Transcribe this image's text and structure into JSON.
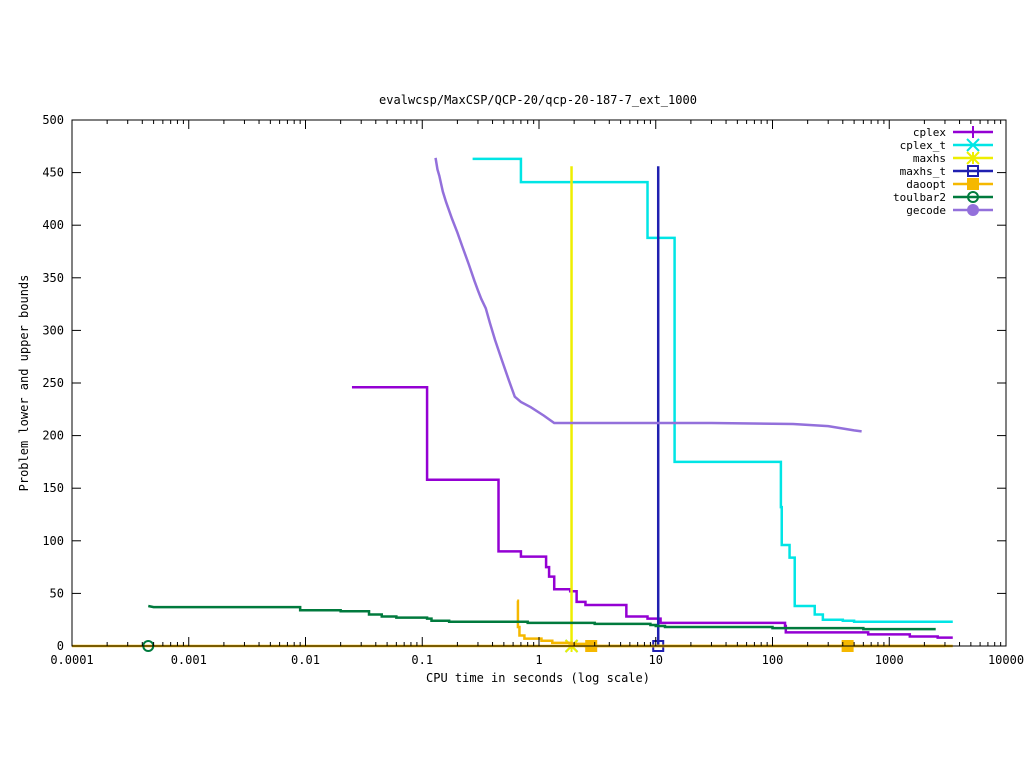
{
  "chart_data": {
    "type": "line",
    "title": "evalwcsp/MaxCSP/QCP-20/qcp-20-187-7_ext_1000",
    "xlabel": "CPU time in seconds (log scale)",
    "ylabel": "Problem lower and upper bounds",
    "x_scale": "log",
    "xlim": [
      0.0001,
      10000
    ],
    "ylim": [
      0,
      500
    ],
    "x_ticks": [
      {
        "value": 0.0001,
        "label": "0.0001"
      },
      {
        "value": 0.001,
        "label": "0.001"
      },
      {
        "value": 0.01,
        "label": "0.01"
      },
      {
        "value": 0.1,
        "label": "0.1"
      },
      {
        "value": 1,
        "label": "1"
      },
      {
        "value": 10,
        "label": "10"
      },
      {
        "value": 100,
        "label": "100"
      },
      {
        "value": 1000,
        "label": "1000"
      },
      {
        "value": 10000,
        "label": "10000"
      }
    ],
    "y_ticks": [
      {
        "value": 0,
        "label": "0"
      },
      {
        "value": 50,
        "label": "50"
      },
      {
        "value": 100,
        "label": "100"
      },
      {
        "value": 150,
        "label": "150"
      },
      {
        "value": 200,
        "label": "200"
      },
      {
        "value": 250,
        "label": "250"
      },
      {
        "value": 300,
        "label": "300"
      },
      {
        "value": 350,
        "label": "350"
      },
      {
        "value": 400,
        "label": "400"
      },
      {
        "value": 450,
        "label": "450"
      },
      {
        "value": 500,
        "label": "500"
      }
    ],
    "grid": false,
    "legend_position": "top-right",
    "series": [
      {
        "name": "cplex",
        "color": "#9400d3",
        "marker": "plus",
        "points": [
          [
            0.025,
            246
          ],
          [
            0.11,
            246
          ],
          [
            0.11,
            158
          ],
          [
            0.45,
            158
          ],
          [
            0.45,
            90
          ],
          [
            0.7,
            90
          ],
          [
            0.7,
            85
          ],
          [
            1.15,
            85
          ],
          [
            1.15,
            75
          ],
          [
            1.22,
            75
          ],
          [
            1.22,
            66
          ],
          [
            1.35,
            66
          ],
          [
            1.35,
            54
          ],
          [
            1.85,
            54
          ],
          [
            1.85,
            52
          ],
          [
            2.1,
            52
          ],
          [
            2.1,
            42
          ],
          [
            2.5,
            42
          ],
          [
            2.5,
            39
          ],
          [
            5.6,
            39
          ],
          [
            5.6,
            28
          ],
          [
            8.5,
            28
          ],
          [
            8.5,
            26
          ],
          [
            11,
            26
          ],
          [
            11,
            22
          ],
          [
            128,
            22
          ],
          [
            128,
            19
          ],
          [
            130,
            19
          ],
          [
            130,
            13
          ],
          [
            660,
            13
          ],
          [
            660,
            11
          ],
          [
            1500,
            11
          ],
          [
            1500,
            9
          ],
          [
            2600,
            9
          ],
          [
            2600,
            8
          ],
          [
            3500,
            8
          ]
        ],
        "marker_points": []
      },
      {
        "name": "cplex_t",
        "color": "#00e5e5",
        "marker": "x",
        "points": [
          [
            0.27,
            463
          ],
          [
            0.7,
            463
          ],
          [
            0.7,
            441
          ],
          [
            8.5,
            441
          ],
          [
            8.5,
            388
          ],
          [
            14.5,
            388
          ],
          [
            14.5,
            175
          ],
          [
            118,
            175
          ],
          [
            118,
            132
          ],
          [
            120,
            132
          ],
          [
            120,
            96
          ],
          [
            140,
            96
          ],
          [
            140,
            84
          ],
          [
            155,
            84
          ],
          [
            155,
            38
          ],
          [
            230,
            38
          ],
          [
            230,
            30
          ],
          [
            270,
            30
          ],
          [
            270,
            25
          ],
          [
            400,
            25
          ],
          [
            400,
            24
          ],
          [
            500,
            24
          ],
          [
            500,
            23
          ],
          [
            3500,
            23
          ]
        ],
        "marker_points": [
          [
            1.9,
            0
          ]
        ]
      },
      {
        "name": "maxhs",
        "color": "#eeee00",
        "marker": "star",
        "points": [
          [
            1.9,
            456
          ],
          [
            1.9,
            0
          ]
        ],
        "marker_points": [
          [
            1.9,
            0
          ]
        ]
      },
      {
        "name": "maxhs_t",
        "color": "#2020b0",
        "marker": "open-square",
        "points": [
          [
            10.5,
            456
          ],
          [
            10.5,
            0
          ]
        ],
        "marker_points": [
          [
            10.5,
            0
          ]
        ]
      },
      {
        "name": "daoopt",
        "color": "#f5b800",
        "marker": "filled-square",
        "points": [
          [
            0.65,
            43
          ],
          [
            0.66,
            43
          ],
          [
            0.66,
            18
          ],
          [
            0.68,
            18
          ],
          [
            0.68,
            10
          ],
          [
            0.75,
            10
          ],
          [
            0.75,
            7
          ],
          [
            1.05,
            7
          ],
          [
            1.05,
            5
          ],
          [
            1.3,
            5
          ],
          [
            1.3,
            3
          ],
          [
            1.9,
            3
          ],
          [
            1.9,
            2
          ],
          [
            2.5,
            2
          ],
          [
            2.5,
            0
          ],
          [
            3000,
            0
          ]
        ],
        "lower_points": [
          [
            0.0001,
            0
          ],
          [
            3500,
            0
          ]
        ],
        "marker_points": [
          [
            2.8,
            0
          ],
          [
            440,
            0
          ]
        ]
      },
      {
        "name": "toulbar2",
        "color": "#007a3d",
        "marker": "open-circle",
        "points": [
          [
            0.00045,
            38
          ],
          [
            0.0005,
            37
          ],
          [
            0.009,
            37
          ],
          [
            0.009,
            34
          ],
          [
            0.02,
            34
          ],
          [
            0.02,
            33
          ],
          [
            0.035,
            33
          ],
          [
            0.035,
            30
          ],
          [
            0.045,
            30
          ],
          [
            0.045,
            28
          ],
          [
            0.06,
            28
          ],
          [
            0.06,
            27
          ],
          [
            0.11,
            27
          ],
          [
            0.11,
            26
          ],
          [
            0.12,
            26
          ],
          [
            0.12,
            24
          ],
          [
            0.17,
            24
          ],
          [
            0.17,
            23
          ],
          [
            0.8,
            23
          ],
          [
            0.8,
            22
          ],
          [
            3,
            22
          ],
          [
            3,
            21
          ],
          [
            9,
            21
          ],
          [
            9,
            20
          ],
          [
            10,
            20
          ],
          [
            10,
            19
          ],
          [
            12,
            19
          ],
          [
            12,
            18
          ],
          [
            100,
            18
          ],
          [
            100,
            17
          ],
          [
            600,
            17
          ],
          [
            600,
            16
          ],
          [
            2500,
            16
          ]
        ],
        "marker_points": [
          [
            0.00045,
            0
          ]
        ]
      },
      {
        "name": "gecode",
        "color": "#9370db",
        "marker": "filled-circle",
        "points": [
          [
            0.13,
            464
          ],
          [
            0.135,
            453
          ],
          [
            0.14,
            447
          ],
          [
            0.15,
            432
          ],
          [
            0.16,
            422
          ],
          [
            0.18,
            406
          ],
          [
            0.2,
            393
          ],
          [
            0.22,
            380
          ],
          [
            0.25,
            363
          ],
          [
            0.28,
            347
          ],
          [
            0.3,
            338
          ],
          [
            0.32,
            330
          ],
          [
            0.35,
            321
          ],
          [
            0.38,
            307
          ],
          [
            0.42,
            291
          ],
          [
            0.48,
            272
          ],
          [
            0.55,
            253
          ],
          [
            0.62,
            237
          ],
          [
            0.7,
            232
          ],
          [
            0.85,
            227
          ],
          [
            1.1,
            219
          ],
          [
            1.35,
            212
          ],
          [
            5,
            212
          ],
          [
            30,
            212
          ],
          [
            150,
            211
          ],
          [
            300,
            209
          ],
          [
            500,
            205
          ],
          [
            580,
            204
          ]
        ],
        "marker_points": []
      }
    ]
  }
}
